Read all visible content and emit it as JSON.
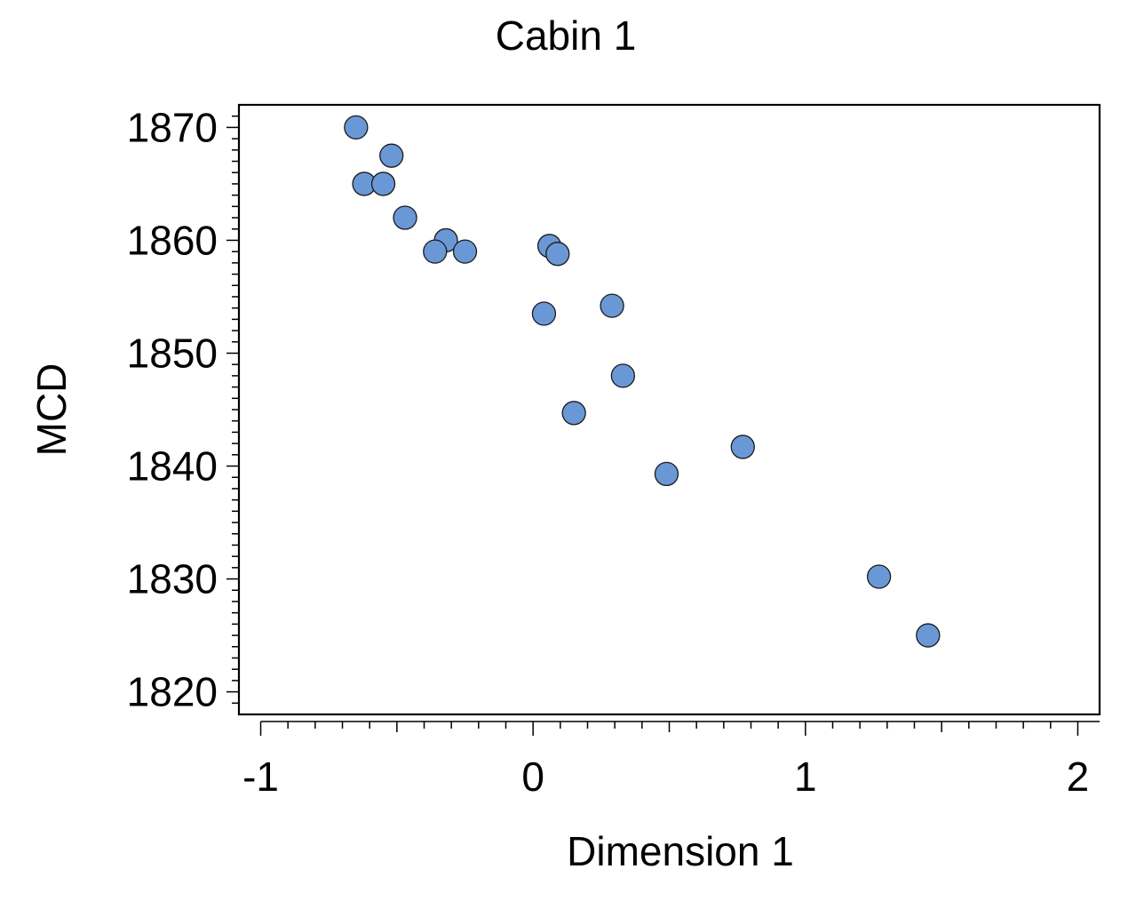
{
  "chart_data": {
    "type": "scatter",
    "title": "Cabin 1",
    "xlabel": "Dimension 1",
    "ylabel": "MCD",
    "xlim": [
      -1.08,
      2.08
    ],
    "ylim": [
      1818,
      1872
    ],
    "x_ticks": [
      -1,
      0,
      1,
      2
    ],
    "x_tick_labels": [
      "-1",
      "0",
      "1",
      "2"
    ],
    "y_ticks": [
      1820,
      1830,
      1840,
      1850,
      1860,
      1870
    ],
    "y_tick_labels": [
      "1820",
      "1830",
      "1840",
      "1850",
      "1860",
      "1870"
    ],
    "grid": false,
    "legend": "none",
    "marker_color": "#6a98d6",
    "series": [
      {
        "points": [
          {
            "x": -0.65,
            "y": 1870
          },
          {
            "x": -0.52,
            "y": 1867.5
          },
          {
            "x": -0.62,
            "y": 1865
          },
          {
            "x": -0.55,
            "y": 1865
          },
          {
            "x": -0.47,
            "y": 1862
          },
          {
            "x": -0.32,
            "y": 1860
          },
          {
            "x": -0.36,
            "y": 1859
          },
          {
            "x": -0.25,
            "y": 1859
          },
          {
            "x": 0.06,
            "y": 1859.5
          },
          {
            "x": 0.09,
            "y": 1858.8
          },
          {
            "x": 0.29,
            "y": 1854.2
          },
          {
            "x": 0.04,
            "y": 1853.5
          },
          {
            "x": 0.33,
            "y": 1848
          },
          {
            "x": 0.15,
            "y": 1844.7
          },
          {
            "x": 0.77,
            "y": 1841.7
          },
          {
            "x": 0.49,
            "y": 1839.3
          },
          {
            "x": 1.27,
            "y": 1830.2
          },
          {
            "x": 1.45,
            "y": 1825
          }
        ]
      }
    ]
  }
}
